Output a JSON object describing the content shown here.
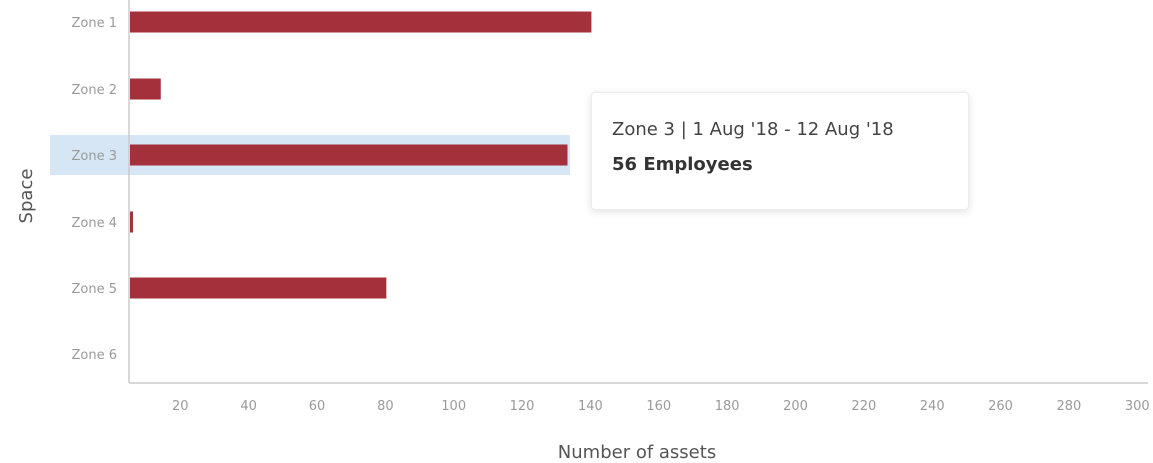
{
  "chart_data": {
    "type": "bar",
    "orientation": "horizontal",
    "categories": [
      "Zone 1",
      "Zone 2",
      "Zone 3",
      "Zone 4",
      "Zone 5",
      "Zone 6"
    ],
    "values": [
      140,
      14,
      133,
      1,
      80,
      0
    ],
    "xlabel": "Number of assets",
    "ylabel": "Space",
    "xlim": [
      5,
      300
    ],
    "xticks": [
      20,
      40,
      60,
      80,
      100,
      120,
      140,
      160,
      180,
      200,
      220,
      240,
      260,
      280,
      300
    ],
    "grid": false,
    "highlighted_category": "Zone 3",
    "colors": {
      "bar": "#a3303a",
      "highlight_band": "#d6e6f5",
      "axis": "#cccccc"
    }
  },
  "tooltip": {
    "title": "Zone 3 | 1 Aug '18 - 12 Aug '18",
    "value": "56 Employees"
  }
}
